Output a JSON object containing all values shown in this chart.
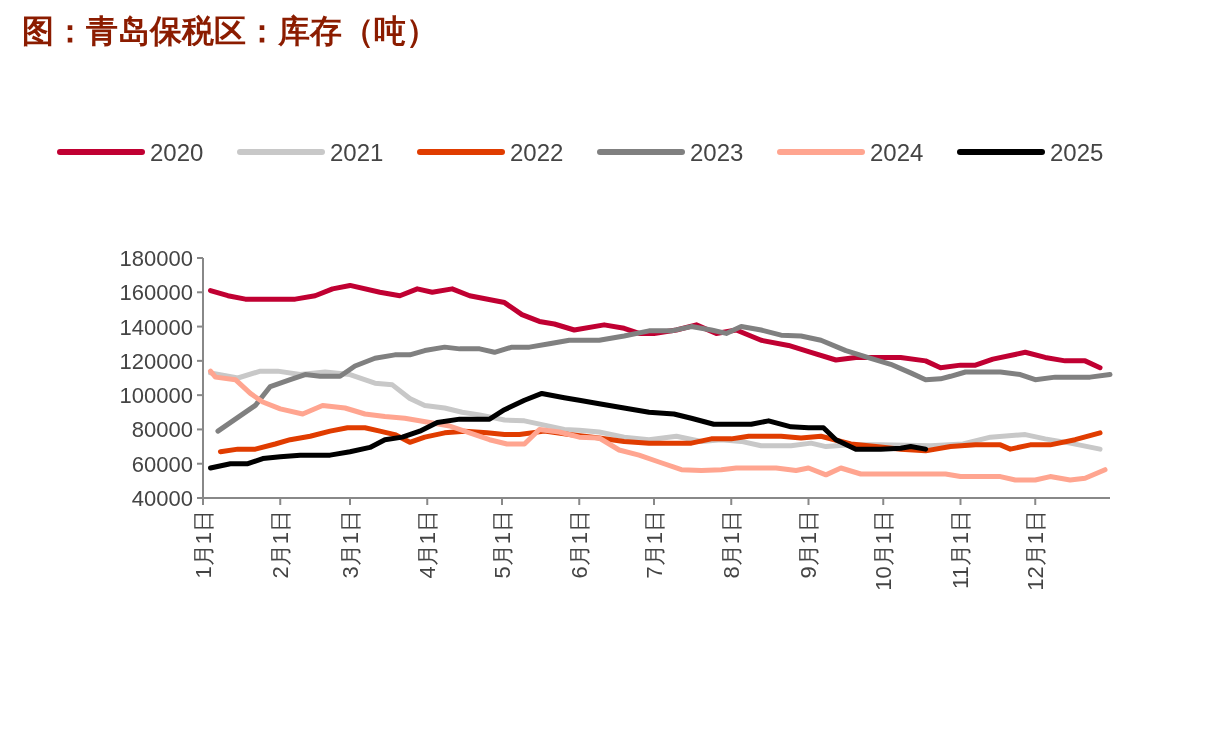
{
  "chart_data": {
    "type": "line",
    "title": "图：青岛保税区：库存（吨）",
    "legend": "top",
    "grid": false,
    "marker": "none",
    "line_style": "solid",
    "xlim": [
      "--01-01",
      "--12-31"
    ],
    "xticks": [
      {
        "value": "--01-01",
        "label": "1月1日"
      },
      {
        "value": "--02-01",
        "label": "2月1日"
      },
      {
        "value": "--03-01",
        "label": "3月1日"
      },
      {
        "value": "--04-01",
        "label": "4月1日"
      },
      {
        "value": "--05-01",
        "label": "5月1日"
      },
      {
        "value": "--06-01",
        "label": "6月1日"
      },
      {
        "value": "--07-01",
        "label": "7月1日"
      },
      {
        "value": "--08-01",
        "label": "8月1日"
      },
      {
        "value": "--09-01",
        "label": "9月1日"
      },
      {
        "value": "--10-01",
        "label": "10月1日"
      },
      {
        "value": "--11-01",
        "label": "11月1日"
      },
      {
        "value": "--12-01",
        "label": "12月1日"
      }
    ],
    "ylim": [
      40000,
      180000
    ],
    "yticks": [
      40000,
      60000,
      80000,
      100000,
      120000,
      140000,
      160000,
      180000
    ],
    "series": [
      {
        "name": "2020",
        "color": "#c00032",
        "x": [
          "--01-04",
          "--01-11",
          "--01-18",
          "--02-07",
          "--02-15",
          "--02-22",
          "--03-01",
          "--03-13",
          "--03-21",
          "--03-28",
          "--04-03",
          "--04-11",
          "--04-18",
          "--05-02",
          "--05-09",
          "--05-16",
          "--05-22",
          "--05-30",
          "--06-11",
          "--06-19",
          "--06-25",
          "--07-01",
          "--07-10",
          "--07-18",
          "--07-26",
          "--08-03",
          "--08-13",
          "--08-24",
          "--09-02",
          "--09-12",
          "--09-20",
          "--10-08",
          "--10-18",
          "--10-24",
          "--11-01",
          "--11-07",
          "--11-14",
          "--11-27",
          "--12-05",
          "--12-13",
          "--12-21",
          "--12-27"
        ],
        "values": [
          161000,
          158000,
          156000,
          156000,
          158000,
          162000,
          164000,
          160000,
          158000,
          162000,
          160000,
          162000,
          158000,
          154000,
          147000,
          143000,
          141500,
          138000,
          141000,
          139000,
          136000,
          136000,
          138000,
          141000,
          136000,
          138000,
          132000,
          129000,
          125000,
          120500,
          122000,
          122000,
          120000,
          116000,
          117500,
          117500,
          121000,
          125000,
          122000,
          120000,
          120000,
          116000
        ]
      },
      {
        "name": "2021",
        "color": "#c8c8c8",
        "x": [
          "--01-04",
          "--01-15",
          "--01-24",
          "--01-31",
          "--02-09",
          "--02-19",
          "--03-01",
          "--03-11",
          "--03-18",
          "--03-25",
          "--03-31",
          "--04-08",
          "--04-15",
          "--04-22",
          "--05-02",
          "--05-10",
          "--05-18",
          "--05-26",
          "--06-01",
          "--06-09",
          "--06-19",
          "--06-29",
          "--07-10",
          "--07-20",
          "--07-28",
          "--08-05",
          "--08-13",
          "--08-25",
          "--09-02",
          "--09-08",
          "--09-18",
          "--09-30",
          "--10-20",
          "--11-02",
          "--11-13",
          "--11-27",
          "--12-05",
          "--12-15",
          "--12-27"
        ],
        "values": [
          113000,
          110000,
          114000,
          114000,
          112000,
          113500,
          112000,
          107000,
          106000,
          98000,
          94000,
          92500,
          90000,
          88500,
          85500,
          85000,
          82500,
          80000,
          79500,
          78500,
          75500,
          74000,
          76000,
          73000,
          74000,
          73000,
          70500,
          70500,
          72000,
          70000,
          71000,
          71000,
          70500,
          71500,
          75500,
          77000,
          74500,
          72000,
          68500
        ]
      },
      {
        "name": "2022",
        "color": "#e03c00",
        "x": [
          "--01-08",
          "--01-15",
          "--01-22",
          "--01-30",
          "--02-05",
          "--02-13",
          "--02-21",
          "--02-28",
          "--03-07",
          "--03-13",
          "--03-19",
          "--03-25",
          "--03-31",
          "--04-08",
          "--04-16",
          "--04-25",
          "--05-02",
          "--05-08",
          "--05-18",
          "--05-28",
          "--06-09",
          "--06-19",
          "--06-29",
          "--07-16",
          "--07-24",
          "--08-01",
          "--08-08",
          "--08-21",
          "--08-29",
          "--09-06",
          "--09-18",
          "--09-28",
          "--10-08",
          "--10-18",
          "--10-28",
          "--11-07",
          "--11-17",
          "--11-21",
          "--11-29",
          "--12-07",
          "--12-17",
          "--12-27"
        ],
        "values": [
          67000,
          68500,
          68500,
          71500,
          74000,
          76000,
          79000,
          81000,
          81000,
          79000,
          77000,
          72500,
          75500,
          78000,
          79000,
          78000,
          77000,
          77000,
          79000,
          77000,
          75000,
          73000,
          72000,
          72000,
          74500,
          74500,
          76000,
          76000,
          75000,
          76000,
          71500,
          70000,
          68500,
          67500,
          70000,
          71000,
          71000,
          68500,
          71000,
          71000,
          74000,
          78000
        ]
      },
      {
        "name": "2023",
        "color": "#808080",
        "x": [
          "--01-07",
          "--01-15",
          "--01-22",
          "--01-28",
          "--02-05",
          "--02-11",
          "--02-17",
          "--02-25",
          "--03-03",
          "--03-11",
          "--03-19",
          "--03-25",
          "--03-31",
          "--04-08",
          "--04-14",
          "--04-22",
          "--04-28",
          "--05-05",
          "--05-12",
          "--05-20",
          "--05-28",
          "--06-09",
          "--06-19",
          "--06-29",
          "--07-08",
          "--07-16",
          "--07-24",
          "--07-30",
          "--08-05",
          "--08-13",
          "--08-21",
          "--08-29",
          "--09-06",
          "--09-16",
          "--09-26",
          "--10-04",
          "--10-12",
          "--10-18",
          "--10-24",
          "--10-28",
          "--11-03",
          "--11-17",
          "--11-25",
          "--12-01",
          "--12-09",
          "--12-23",
          "--12-31"
        ],
        "values": [
          79000,
          87000,
          94000,
          105000,
          109000,
          112000,
          111000,
          111000,
          117000,
          121500,
          123500,
          123500,
          126000,
          128000,
          127000,
          127000,
          125000,
          128000,
          128000,
          130000,
          132000,
          132000,
          134500,
          137500,
          137500,
          140000,
          138000,
          136000,
          140000,
          138000,
          135000,
          134500,
          132000,
          126000,
          121500,
          118000,
          113000,
          109000,
          109500,
          111000,
          113500,
          113500,
          112000,
          109000,
          110500,
          110500,
          112000
        ]
      },
      {
        "name": "2024",
        "color": "#ffa590",
        "x": [
          "--01-04",
          "--01-06",
          "--01-14",
          "--01-20",
          "--01-25",
          "--02-01",
          "--02-10",
          "--02-18",
          "--02-27",
          "--03-07",
          "--03-15",
          "--03-23",
          "--04-02",
          "--04-10",
          "--04-18",
          "--04-26",
          "--05-03",
          "--05-10",
          "--05-16",
          "--05-24",
          "--06-01",
          "--06-09",
          "--06-17",
          "--06-25",
          "--07-03",
          "--07-12",
          "--07-20",
          "--07-28",
          "--08-03",
          "--08-19",
          "--08-27",
          "--09-01",
          "--09-08",
          "--09-14",
          "--09-22",
          "--10-08",
          "--10-26",
          "--11-01",
          "--11-17",
          "--11-23",
          "--12-01",
          "--12-07",
          "--12-15",
          "--12-21",
          "--12-29"
        ],
        "values": [
          114000,
          110500,
          109000,
          101000,
          96000,
          92000,
          89000,
          94000,
          92500,
          89000,
          87500,
          86500,
          84000,
          82000,
          78000,
          74000,
          71500,
          71500,
          80000,
          78500,
          75500,
          75000,
          68000,
          65000,
          61000,
          56500,
          56000,
          56500,
          57500,
          57500,
          56000,
          57500,
          53500,
          57500,
          54000,
          54000,
          54000,
          52500,
          52500,
          50500,
          50500,
          52500,
          50500,
          51500,
          56500
        ]
      },
      {
        "name": "2025",
        "color": "#000000",
        "x": [
          "--01-04",
          "--01-12",
          "--01-19",
          "--01-25",
          "--02-01",
          "--02-09",
          "--02-21",
          "--03-01",
          "--03-09",
          "--03-15",
          "--03-22",
          "--03-29",
          "--04-05",
          "--04-14",
          "--04-26",
          "--05-02",
          "--05-10",
          "--05-17",
          "--05-26",
          "--06-01",
          "--06-09",
          "--06-19",
          "--06-29",
          "--07-09",
          "--07-16",
          "--07-25",
          "--08-09",
          "--08-16",
          "--08-25",
          "--09-01",
          "--09-07",
          "--09-12",
          "--09-20",
          "--09-30",
          "--10-08",
          "--10-12",
          "--10-18"
        ],
        "values": [
          57500,
          60000,
          60000,
          63000,
          64000,
          65000,
          65000,
          67000,
          69500,
          74000,
          75500,
          79000,
          84000,
          86000,
          86000,
          91500,
          97000,
          101000,
          98500,
          97000,
          95000,
          92500,
          90000,
          89000,
          86500,
          83000,
          83000,
          85000,
          81500,
          81000,
          81000,
          74000,
          68500,
          68500,
          69000,
          70000,
          68500
        ]
      }
    ]
  }
}
